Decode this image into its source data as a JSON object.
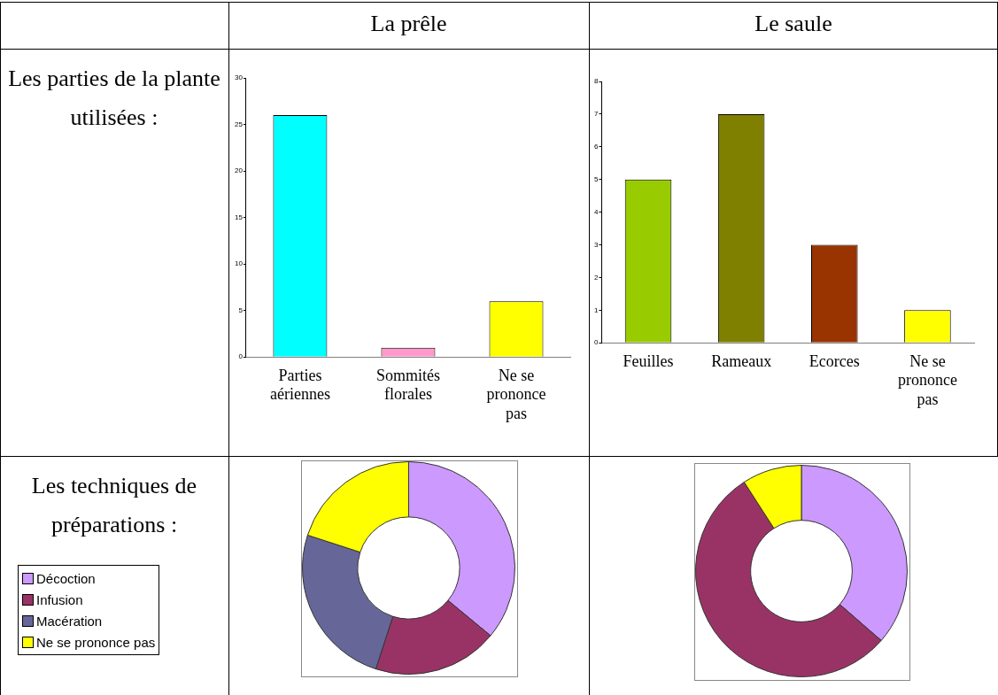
{
  "chart_data": [
    {
      "type": "bar",
      "title": "La prêle",
      "annotations": [
        "Les parties de la plante utilisées :"
      ],
      "categories": [
        "Parties aériennes",
        "Sommités florales",
        "Ne se prononce pas"
      ],
      "values": [
        26,
        1,
        6
      ],
      "colors": [
        "#00ffff",
        "#ff99cc",
        "#ffff00"
      ],
      "ylim": [
        0,
        30
      ],
      "yticks": [
        0,
        5,
        10,
        15,
        20,
        25,
        30
      ],
      "grid": false
    },
    {
      "type": "bar",
      "title": "Le saule",
      "categories": [
        "Feuilles",
        "Rameaux",
        "Ecorces",
        "Ne se prononce pas"
      ],
      "values": [
        5,
        7,
        3,
        1
      ],
      "colors": [
        "#99cc00",
        "#808000",
        "#993300",
        "#ffff00"
      ],
      "ylim": [
        0,
        8
      ],
      "yticks": [
        0,
        1,
        2,
        3,
        4,
        5,
        6,
        7,
        8
      ],
      "grid": false
    },
    {
      "type": "donut",
      "annotations": [
        "Les techniques de préparations :"
      ],
      "categories": [
        "Décoction",
        "Infusion",
        "Macération",
        "Ne se prononce pas"
      ],
      "values": [
        36,
        19,
        25,
        20
      ],
      "colors": [
        "#cc99ff",
        "#993366",
        "#666699",
        "#ffff00"
      ],
      "legend": "left"
    },
    {
      "type": "donut",
      "categories": [
        null,
        null,
        null
      ],
      "values": [
        36.4,
        54.5,
        9.1
      ],
      "colors": [
        "#cc99ff",
        "#993366",
        "#ffff00"
      ]
    }
  ]
}
